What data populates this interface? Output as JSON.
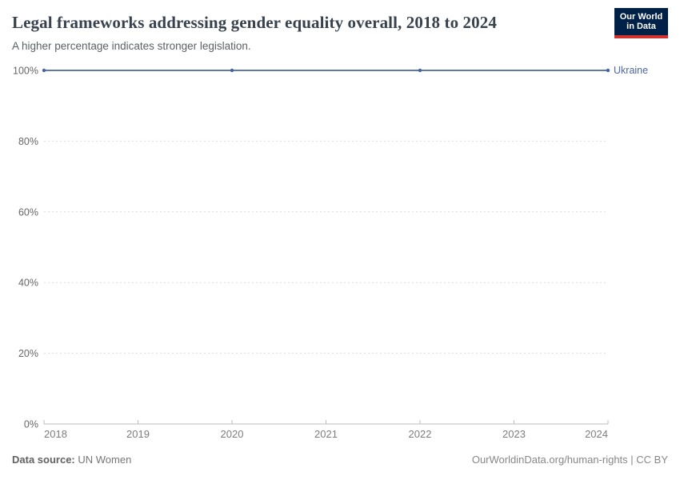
{
  "header": {
    "title": "Legal frameworks addressing gender equality overall, 2018 to 2024",
    "subtitle": "A higher percentage indicates stronger legislation."
  },
  "logo": {
    "line1": "Our World",
    "line2": "in Data",
    "bg_color": "#002147",
    "accent_color": "#d1322b"
  },
  "footer": {
    "source_label": "Data source:",
    "source_value": "UN Women",
    "credit": "OurWorldinData.org/human-rights | CC BY"
  },
  "chart_data": {
    "type": "line",
    "title": "Legal frameworks addressing gender equality overall, 2018 to 2024",
    "subtitle": "A higher percentage indicates stronger legislation.",
    "x": [
      2018,
      2020,
      2022,
      2024
    ],
    "series": [
      {
        "name": "Ukraine",
        "values": [
          100,
          100,
          100,
          100
        ],
        "color": "#5b7aa8",
        "marker_color": "#47639c",
        "label_color": "#4a67a0"
      }
    ],
    "x_ticks": [
      2018,
      2019,
      2020,
      2021,
      2022,
      2023,
      2024
    ],
    "y_ticks": [
      0,
      20,
      40,
      60,
      80,
      100
    ],
    "xlim": [
      2018,
      2024
    ],
    "ylim": [
      0,
      100
    ],
    "y_suffix": "%",
    "grid": "horizontal-dashed",
    "legend_position": "line-end-label",
    "grid_color": "#dcdcdc",
    "axis_color": "#bdbdbd"
  }
}
